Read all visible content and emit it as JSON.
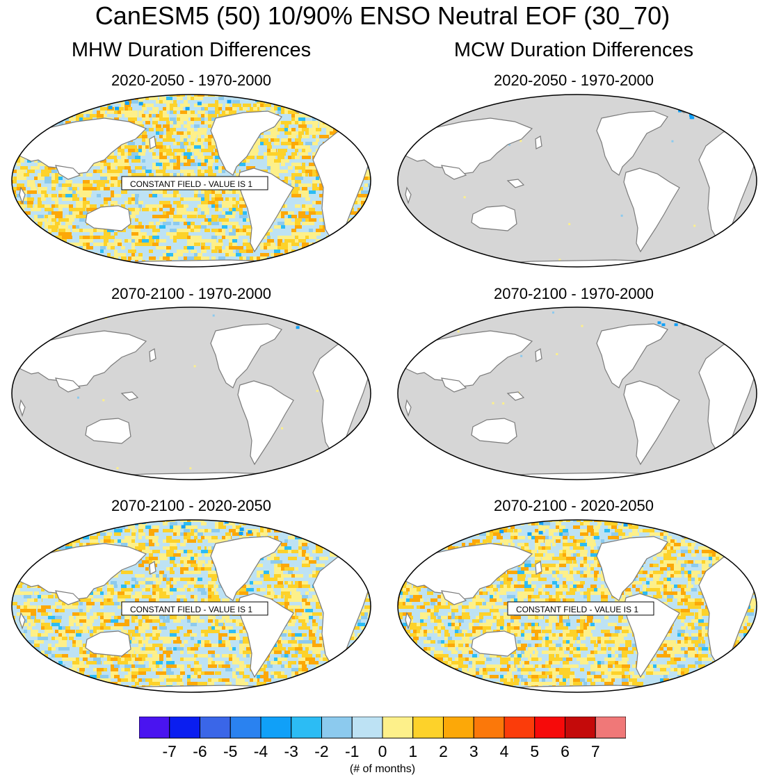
{
  "title": "CanESM5 (50) 10/90% ENSO Neutral EOF (30_70)",
  "columns": [
    "MHW Duration Differences",
    "MCW Duration Differences"
  ],
  "panels": [
    {
      "title": "2020-2050 - 1970-2000",
      "variant": "mixed",
      "note": "CONSTANT FIELD - VALUE IS 1"
    },
    {
      "title": "2020-2050 - 1970-2000",
      "variant": "gray",
      "note": ""
    },
    {
      "title": "2070-2100 - 1970-2000",
      "variant": "gray",
      "note": ""
    },
    {
      "title": "2070-2100 - 1970-2000",
      "variant": "gray",
      "note": ""
    },
    {
      "title": "2070-2100 - 2020-2050",
      "variant": "mixed",
      "note": "CONSTANT FIELD - VALUE IS 1"
    },
    {
      "title": "2070-2100 - 2020-2050",
      "variant": "mixed",
      "note": "CONSTANT FIELD - VALUE IS 1"
    }
  ],
  "colorbar": {
    "colors": [
      "#4a14f0",
      "#0a1ef0",
      "#3a66e8",
      "#2a82f0",
      "#10a0f8",
      "#2cbcf4",
      "#8ccaee",
      "#bde2f4",
      "#fdf08a",
      "#fdd22a",
      "#fca808",
      "#fb780a",
      "#fb3c0a",
      "#f60a0a",
      "#c40a0a",
      "#f07878"
    ],
    "labels": [
      "-7",
      "-6",
      "-5",
      "-4",
      "-3",
      "-2",
      "-1",
      "0",
      "1",
      "2",
      "3",
      "4",
      "5",
      "6",
      "7"
    ],
    "units": "(# of months)"
  },
  "land_color": "#ffffff",
  "missing_color": "#d6d6d6"
}
